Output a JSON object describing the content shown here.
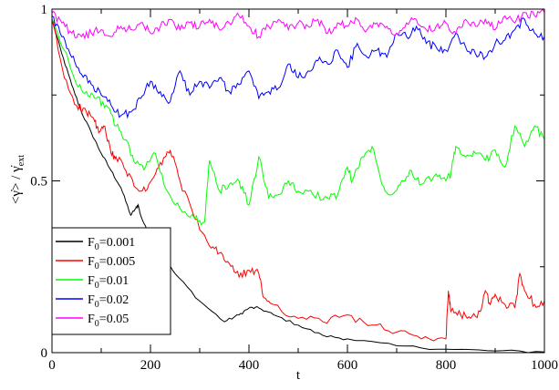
{
  "chart_data": {
    "type": "line",
    "xlabel": "t",
    "ylabel": "<γ̇> / γ̇ext",
    "ylabel_parts": {
      "main": "<γ̇> / γ̇",
      "sub": "ext"
    },
    "xlim": [
      0,
      1000
    ],
    "ylim": [
      0,
      1
    ],
    "xticks": [
      {
        "value": 0,
        "label": "0"
      },
      {
        "value": 200,
        "label": "200"
      },
      {
        "value": 400,
        "label": "400"
      },
      {
        "value": 600,
        "label": "600"
      },
      {
        "value": 800,
        "label": "800"
      },
      {
        "value": 1000,
        "label": "1000"
      }
    ],
    "yticks": [
      {
        "value": 0,
        "label": "0"
      },
      {
        "value": 0.5,
        "label": "0.5"
      },
      {
        "value": 1,
        "label": "1"
      }
    ],
    "grid": false,
    "legend_placement": "bottom-left",
    "series": [
      {
        "name": "F0=0.001",
        "legend": {
          "main": "F",
          "sub": "0",
          "rest": "=0.001"
        },
        "color": "#000000",
        "x": [
          0,
          20,
          40,
          60,
          80,
          100,
          120,
          140,
          160,
          170,
          175,
          180,
          200,
          220,
          250,
          300,
          350,
          380,
          400,
          420,
          450,
          500,
          550,
          600,
          700,
          800,
          900,
          1000
        ],
        "y": [
          0.97,
          0.87,
          0.78,
          0.7,
          0.64,
          0.58,
          0.53,
          0.48,
          0.4,
          0.42,
          0.43,
          0.4,
          0.33,
          0.29,
          0.23,
          0.15,
          0.09,
          0.11,
          0.13,
          0.13,
          0.11,
          0.08,
          0.05,
          0.04,
          0.02,
          0.01,
          0.005,
          0.002
        ]
      },
      {
        "name": "F0=0.005",
        "legend": {
          "main": "F",
          "sub": "0",
          "rest": "=0.005"
        },
        "color": "#ff0000",
        "x": [
          0,
          25,
          50,
          70,
          85,
          95,
          105,
          120,
          130,
          150,
          170,
          190,
          210,
          230,
          240,
          260,
          290,
          320,
          340,
          360,
          380,
          400,
          420,
          430,
          450,
          500,
          550,
          600,
          650,
          700,
          750,
          800,
          805,
          810,
          830,
          850,
          870,
          880,
          890,
          900,
          920,
          940,
          950,
          960,
          980,
          1000
        ],
        "y": [
          0.97,
          0.8,
          0.72,
          0.7,
          0.68,
          0.64,
          0.66,
          0.58,
          0.57,
          0.53,
          0.48,
          0.47,
          0.52,
          0.57,
          0.59,
          0.5,
          0.39,
          0.31,
          0.29,
          0.26,
          0.22,
          0.24,
          0.23,
          0.16,
          0.14,
          0.1,
          0.09,
          0.11,
          0.08,
          0.06,
          0.04,
          0.04,
          0.18,
          0.12,
          0.11,
          0.1,
          0.12,
          0.18,
          0.14,
          0.17,
          0.14,
          0.13,
          0.23,
          0.18,
          0.14,
          0.15
        ]
      },
      {
        "name": "F0=0.01",
        "legend": {
          "main": "F",
          "sub": "0",
          "rest": "=0.01"
        },
        "color": "#00ff00",
        "x": [
          0,
          25,
          50,
          70,
          90,
          110,
          130,
          150,
          170,
          190,
          210,
          230,
          260,
          290,
          310,
          320,
          340,
          360,
          380,
          400,
          420,
          440,
          460,
          480,
          500,
          530,
          560,
          580,
          600,
          610,
          630,
          650,
          670,
          690,
          710,
          730,
          750,
          780,
          800,
          810,
          820,
          840,
          860,
          880,
          900,
          920,
          940,
          960,
          980,
          1000
        ],
        "y": [
          0.97,
          0.88,
          0.78,
          0.76,
          0.74,
          0.72,
          0.66,
          0.62,
          0.55,
          0.54,
          0.58,
          0.48,
          0.42,
          0.39,
          0.38,
          0.56,
          0.47,
          0.49,
          0.5,
          0.43,
          0.57,
          0.45,
          0.46,
          0.5,
          0.47,
          0.46,
          0.45,
          0.46,
          0.54,
          0.5,
          0.57,
          0.6,
          0.49,
          0.46,
          0.5,
          0.53,
          0.49,
          0.52,
          0.5,
          0.52,
          0.6,
          0.57,
          0.58,
          0.56,
          0.59,
          0.54,
          0.66,
          0.6,
          0.66,
          0.62
        ]
      },
      {
        "name": "F0=0.02",
        "legend": {
          "main": "F",
          "sub": "0",
          "rest": "=0.02"
        },
        "color": "#0000ff",
        "x": [
          0,
          20,
          40,
          60,
          80,
          100,
          120,
          140,
          160,
          180,
          200,
          220,
          240,
          260,
          280,
          300,
          320,
          340,
          360,
          380,
          400,
          420,
          440,
          460,
          480,
          500,
          520,
          540,
          560,
          580,
          600,
          620,
          640,
          660,
          680,
          700,
          720,
          740,
          760,
          780,
          800,
          820,
          840,
          860,
          880,
          900,
          920,
          940,
          960,
          980,
          1000
        ],
        "y": [
          0.98,
          0.92,
          0.86,
          0.81,
          0.78,
          0.75,
          0.72,
          0.69,
          0.7,
          0.74,
          0.79,
          0.76,
          0.73,
          0.82,
          0.75,
          0.79,
          0.77,
          0.8,
          0.76,
          0.78,
          0.82,
          0.74,
          0.76,
          0.77,
          0.84,
          0.8,
          0.82,
          0.85,
          0.84,
          0.88,
          0.83,
          0.9,
          0.86,
          0.88,
          0.86,
          0.93,
          0.92,
          0.95,
          0.9,
          0.89,
          0.88,
          0.93,
          0.89,
          0.87,
          0.86,
          0.9,
          0.91,
          0.94,
          0.97,
          0.93,
          0.92
        ]
      },
      {
        "name": "F0=0.05",
        "legend": {
          "main": "F",
          "sub": "0",
          "rest": "=0.05"
        },
        "color": "#ff00ff",
        "x": [
          0,
          20,
          40,
          60,
          80,
          100,
          120,
          140,
          160,
          180,
          200,
          220,
          240,
          260,
          280,
          300,
          320,
          340,
          360,
          380,
          400,
          420,
          440,
          460,
          480,
          500,
          520,
          540,
          560,
          580,
          600,
          620,
          640,
          660,
          680,
          700,
          720,
          740,
          760,
          780,
          800,
          820,
          840,
          860,
          880,
          900,
          920,
          940,
          960,
          980,
          1000
        ],
        "y": [
          0.99,
          0.96,
          0.93,
          0.92,
          0.93,
          0.94,
          0.92,
          0.95,
          0.94,
          0.96,
          0.93,
          0.95,
          0.97,
          0.94,
          0.96,
          0.95,
          0.97,
          0.94,
          0.96,
          0.98,
          0.95,
          0.92,
          0.95,
          0.97,
          0.94,
          0.96,
          0.95,
          0.97,
          0.93,
          0.96,
          0.95,
          0.97,
          0.94,
          0.96,
          0.95,
          0.93,
          0.96,
          0.97,
          0.94,
          0.95,
          0.96,
          0.93,
          0.97,
          0.95,
          0.97,
          0.94,
          0.98,
          0.96,
          0.99,
          0.98,
          0.99
        ]
      }
    ]
  }
}
